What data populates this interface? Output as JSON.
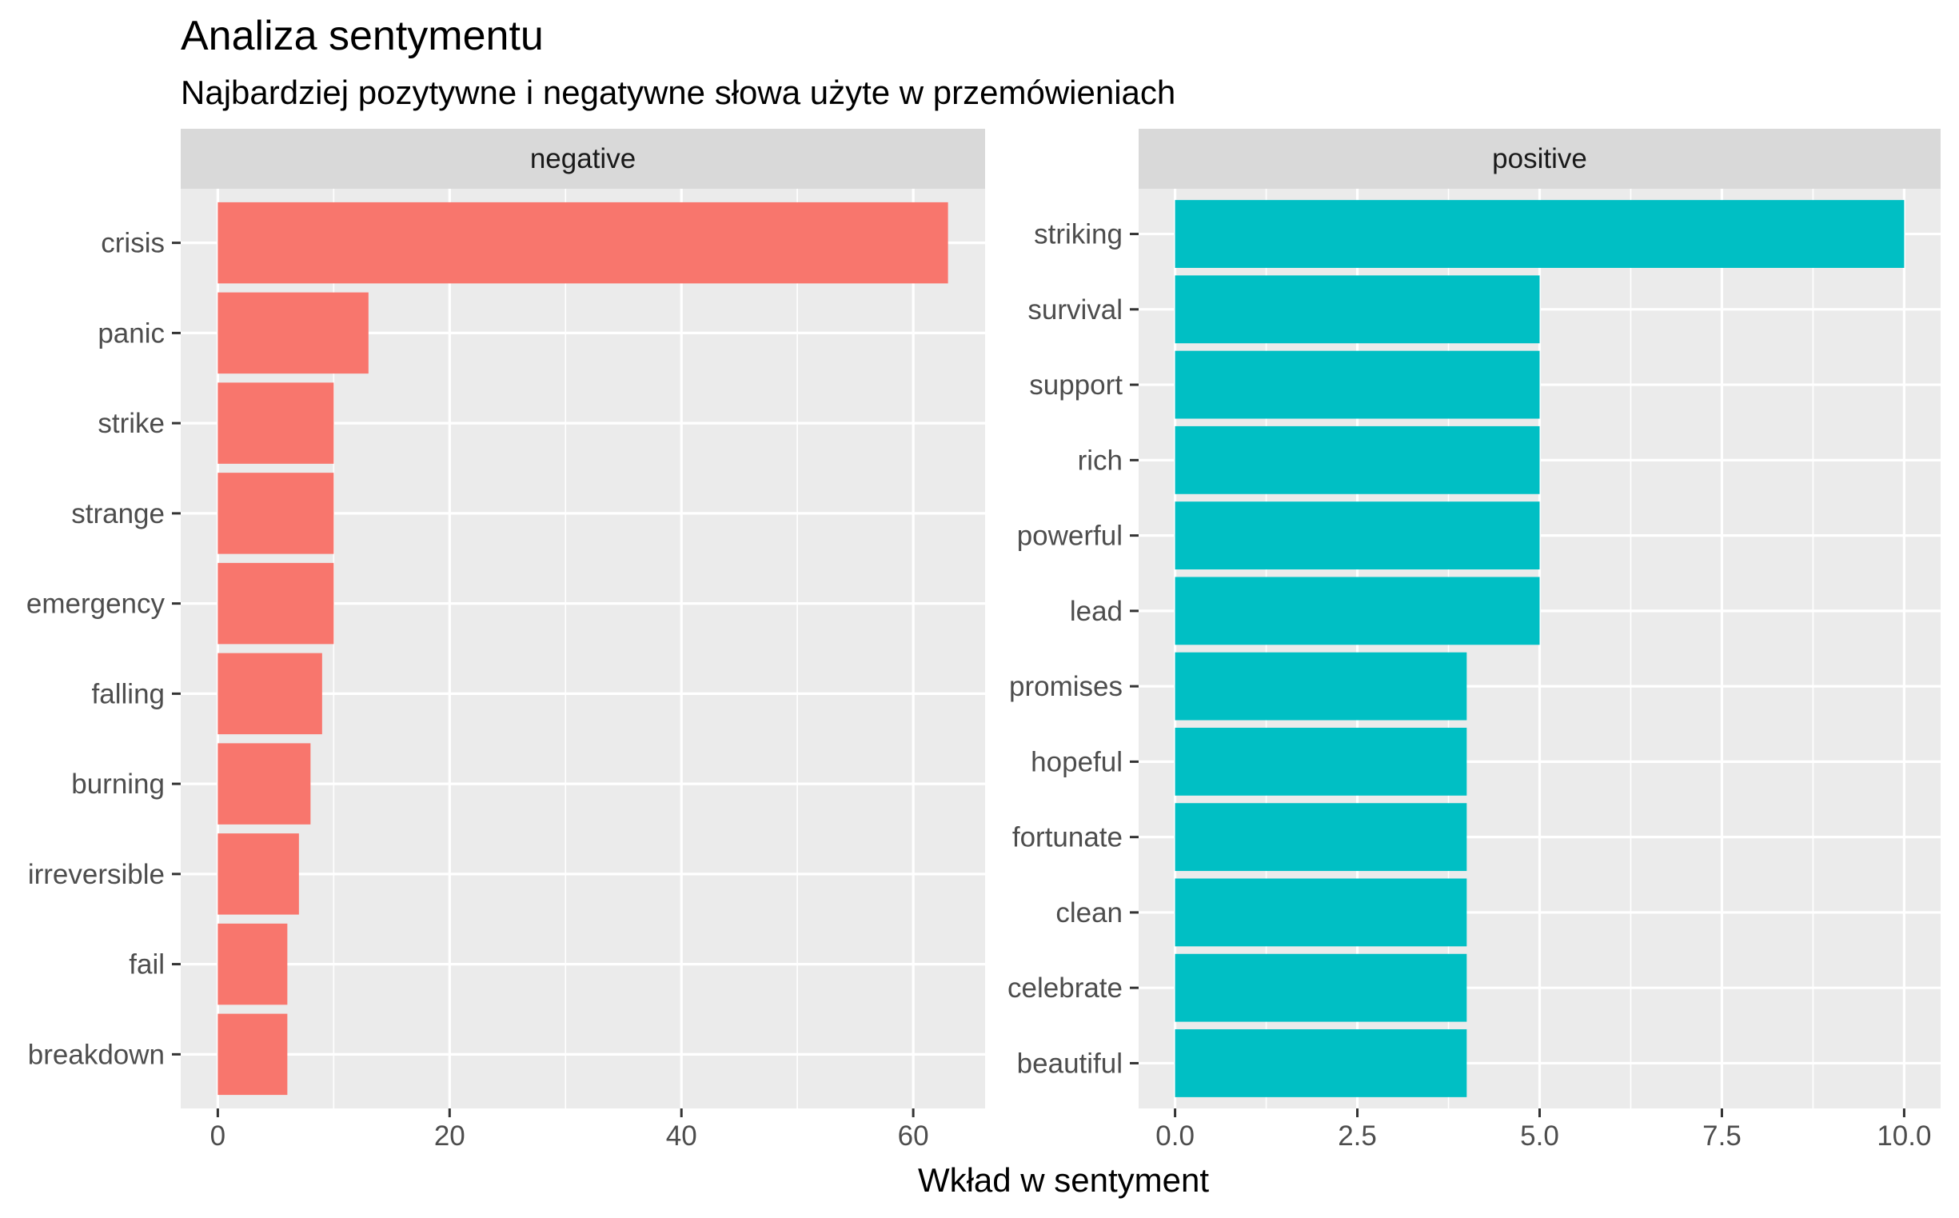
{
  "chart_data": {
    "type": "bar",
    "orientation": "horizontal",
    "title": "Analiza sentymentu",
    "subtitle": "Najbardziej pozytywne i negatywne słowa użyte w przemówieniach",
    "xlabel": "Wkład w sentyment",
    "ylabel": "",
    "grid": true,
    "legend": "none",
    "facets": [
      {
        "label": "negative",
        "color": "#F8766D",
        "xlim": [
          -3.2,
          66.2
        ],
        "ticks": [
          0,
          20,
          40,
          60
        ],
        "tick_labels": [
          "0",
          "20",
          "40",
          "60"
        ],
        "categories": [
          "crisis",
          "panic",
          "strike",
          "strange",
          "emergency",
          "falling",
          "burning",
          "irreversible",
          "fail",
          "breakdown"
        ],
        "values": [
          63,
          13,
          10,
          10,
          10,
          9,
          8,
          7,
          6,
          6
        ]
      },
      {
        "label": "positive",
        "color": "#00BFC4",
        "xlim": [
          -0.5,
          10.5
        ],
        "ticks": [
          0,
          2.5,
          5,
          7.5,
          10
        ],
        "tick_labels": [
          "0.0",
          "2.5",
          "5.0",
          "7.5",
          "10.0"
        ],
        "categories": [
          "striking",
          "survival",
          "support",
          "rich",
          "powerful",
          "lead",
          "promises",
          "hopeful",
          "fortunate",
          "clean",
          "celebrate",
          "beautiful"
        ],
        "values": [
          10,
          5,
          5,
          5,
          5,
          5,
          4,
          4,
          4,
          4,
          4,
          4
        ]
      }
    ]
  }
}
